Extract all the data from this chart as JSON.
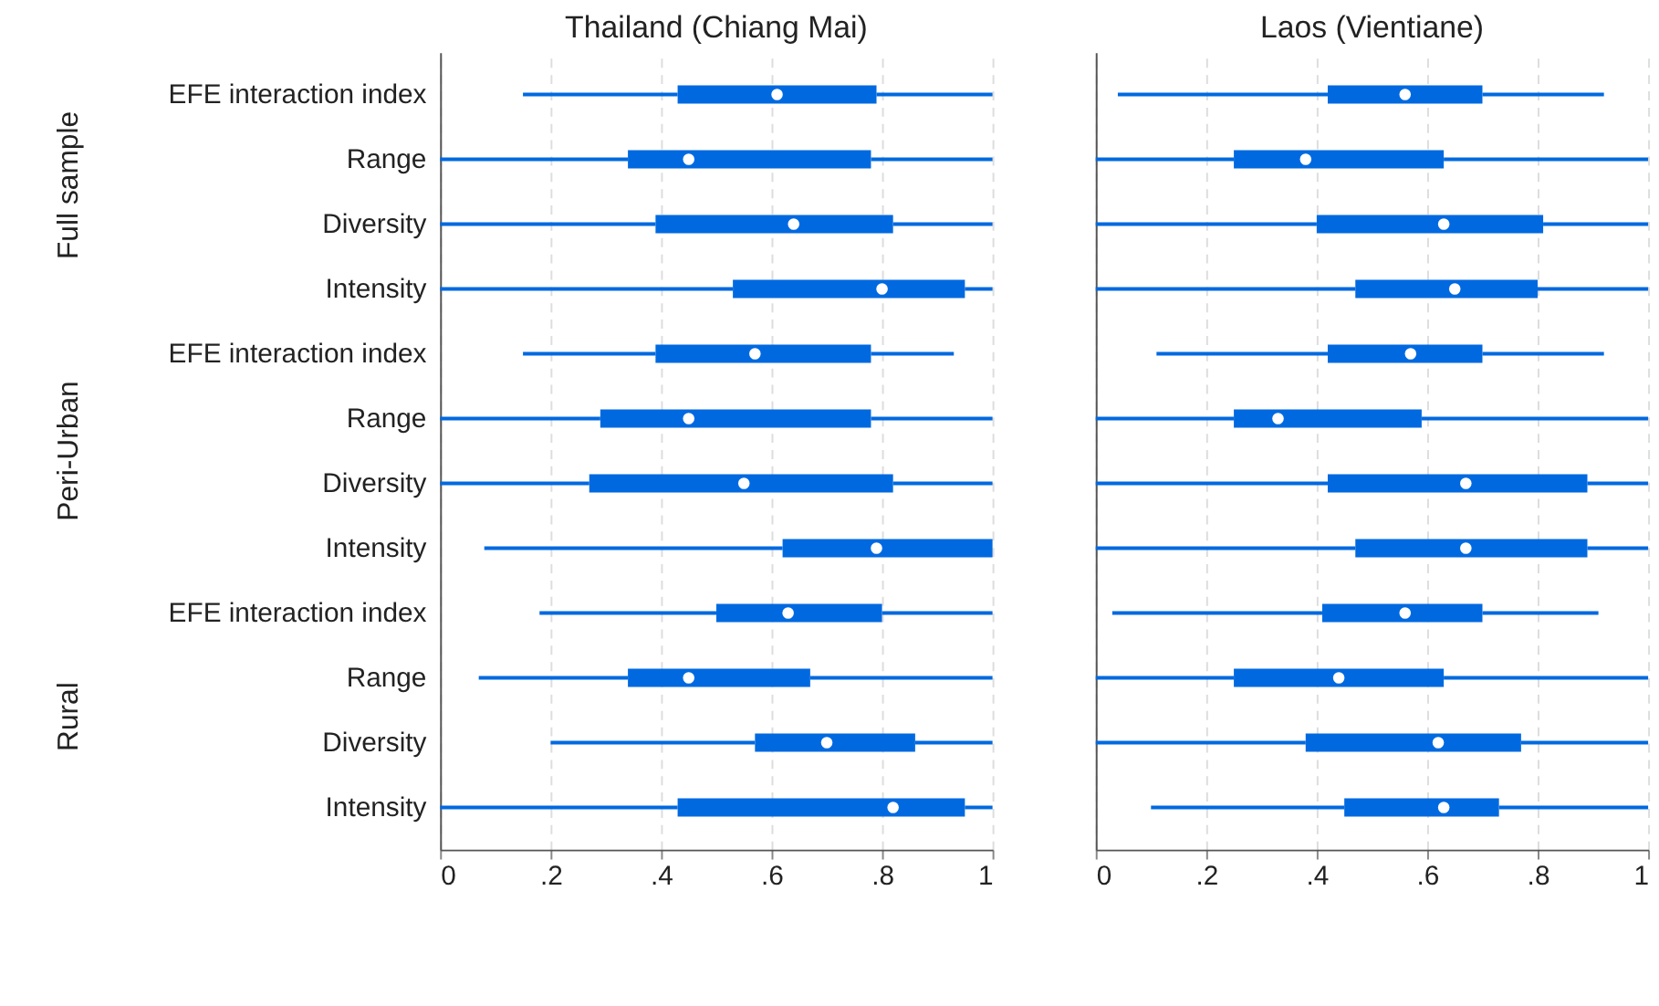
{
  "chart_data": [
    {
      "type": "box",
      "title": "Thailand (Chiang Mai)",
      "orientation": "horizontal",
      "categories": [
        "EFE interaction index",
        "Range",
        "Diversity",
        "Intensity",
        "EFE interaction index",
        "Range",
        "Diversity",
        "Intensity",
        "EFE interaction index",
        "Range",
        "Diversity",
        "Intensity"
      ],
      "annotations": [
        "Full sample",
        "Peri-Urban",
        "Rural"
      ],
      "color": "#0069e0",
      "xlim": [
        0,
        1
      ],
      "xticks": [
        0,
        {
          "value": 0.2,
          "label": ".2"
        },
        {
          "value": 0.4,
          "label": ".4"
        },
        {
          "value": 0.6,
          "label": ".6"
        },
        {
          "value": 0.8,
          "label": ".8"
        },
        1
      ],
      "grid": "x",
      "boxes": [
        {
          "low": 0.15,
          "q1": 0.43,
          "median": 0.61,
          "q3": 0.79,
          "high": 1
        },
        {
          "low": 0,
          "q1": 0.34,
          "median": 0.45,
          "q3": 0.78,
          "high": 1
        },
        {
          "low": 0,
          "q1": 0.39,
          "median": 0.64,
          "q3": 0.82,
          "high": 1
        },
        {
          "low": 0,
          "q1": 0.53,
          "median": 0.8,
          "q3": 0.95,
          "high": 1
        },
        {
          "low": 0.15,
          "q1": 0.39,
          "median": 0.57,
          "q3": 0.78,
          "high": 0.93
        },
        {
          "low": 0,
          "q1": 0.29,
          "median": 0.45,
          "q3": 0.78,
          "high": 1
        },
        {
          "low": 0,
          "q1": 0.27,
          "median": 0.55,
          "q3": 0.82,
          "high": 1
        },
        {
          "low": 0.08,
          "q1": 0.62,
          "median": 0.79,
          "q3": 1,
          "high": 1
        },
        {
          "low": 0.18,
          "q1": 0.5,
          "median": 0.63,
          "q3": 0.8,
          "high": 1
        },
        {
          "low": 0.07,
          "q1": 0.34,
          "median": 0.45,
          "q3": 0.67,
          "high": 1
        },
        {
          "low": 0.2,
          "q1": 0.57,
          "median": 0.7,
          "q3": 0.86,
          "high": 1
        },
        {
          "low": 0,
          "q1": 0.43,
          "median": 0.82,
          "q3": 0.95,
          "high": 1
        }
      ]
    },
    {
      "type": "box",
      "title": "Laos (Vientiane)",
      "orientation": "horizontal",
      "categories": [
        null,
        null,
        null,
        null,
        null,
        null,
        null,
        null,
        null,
        null,
        null,
        null
      ],
      "color": "#0069e0",
      "xlim": [
        0,
        1
      ],
      "xticks": [
        0,
        {
          "value": 0.2,
          "label": ".2"
        },
        {
          "value": 0.4,
          "label": ".4"
        },
        {
          "value": 0.6,
          "label": ".6"
        },
        {
          "value": 0.8,
          "label": ".8"
        },
        1
      ],
      "grid": "x",
      "tick_labels": "x",
      "boxes": [
        {
          "low": 0.04,
          "q1": 0.42,
          "median": 0.56,
          "q3": 0.7,
          "high": 0.92
        },
        {
          "low": 0,
          "q1": 0.25,
          "median": 0.38,
          "q3": 0.63,
          "high": 1
        },
        {
          "low": 0,
          "q1": 0.4,
          "median": 0.63,
          "q3": 0.81,
          "high": 1
        },
        {
          "low": 0,
          "q1": 0.47,
          "median": 0.65,
          "q3": 0.8,
          "high": 1
        },
        {
          "low": 0.11,
          "q1": 0.42,
          "median": 0.57,
          "q3": 0.7,
          "high": 0.92
        },
        {
          "low": 0,
          "q1": 0.25,
          "median": 0.33,
          "q3": 0.59,
          "high": 1
        },
        {
          "low": 0,
          "q1": 0.42,
          "median": 0.67,
          "q3": 0.89,
          "high": 1
        },
        {
          "low": 0,
          "q1": 0.47,
          "median": 0.67,
          "q3": 0.89,
          "high": 1
        },
        {
          "low": 0.03,
          "q1": 0.41,
          "median": 0.56,
          "q3": 0.7,
          "high": 0.91
        },
        {
          "low": 0,
          "q1": 0.25,
          "median": 0.44,
          "q3": 0.63,
          "high": 1
        },
        {
          "low": 0,
          "q1": 0.38,
          "median": 0.62,
          "q3": 0.77,
          "high": 1
        },
        {
          "low": 0.1,
          "q1": 0.45,
          "median": 0.63,
          "q3": 0.73,
          "high": 1
        }
      ]
    }
  ]
}
